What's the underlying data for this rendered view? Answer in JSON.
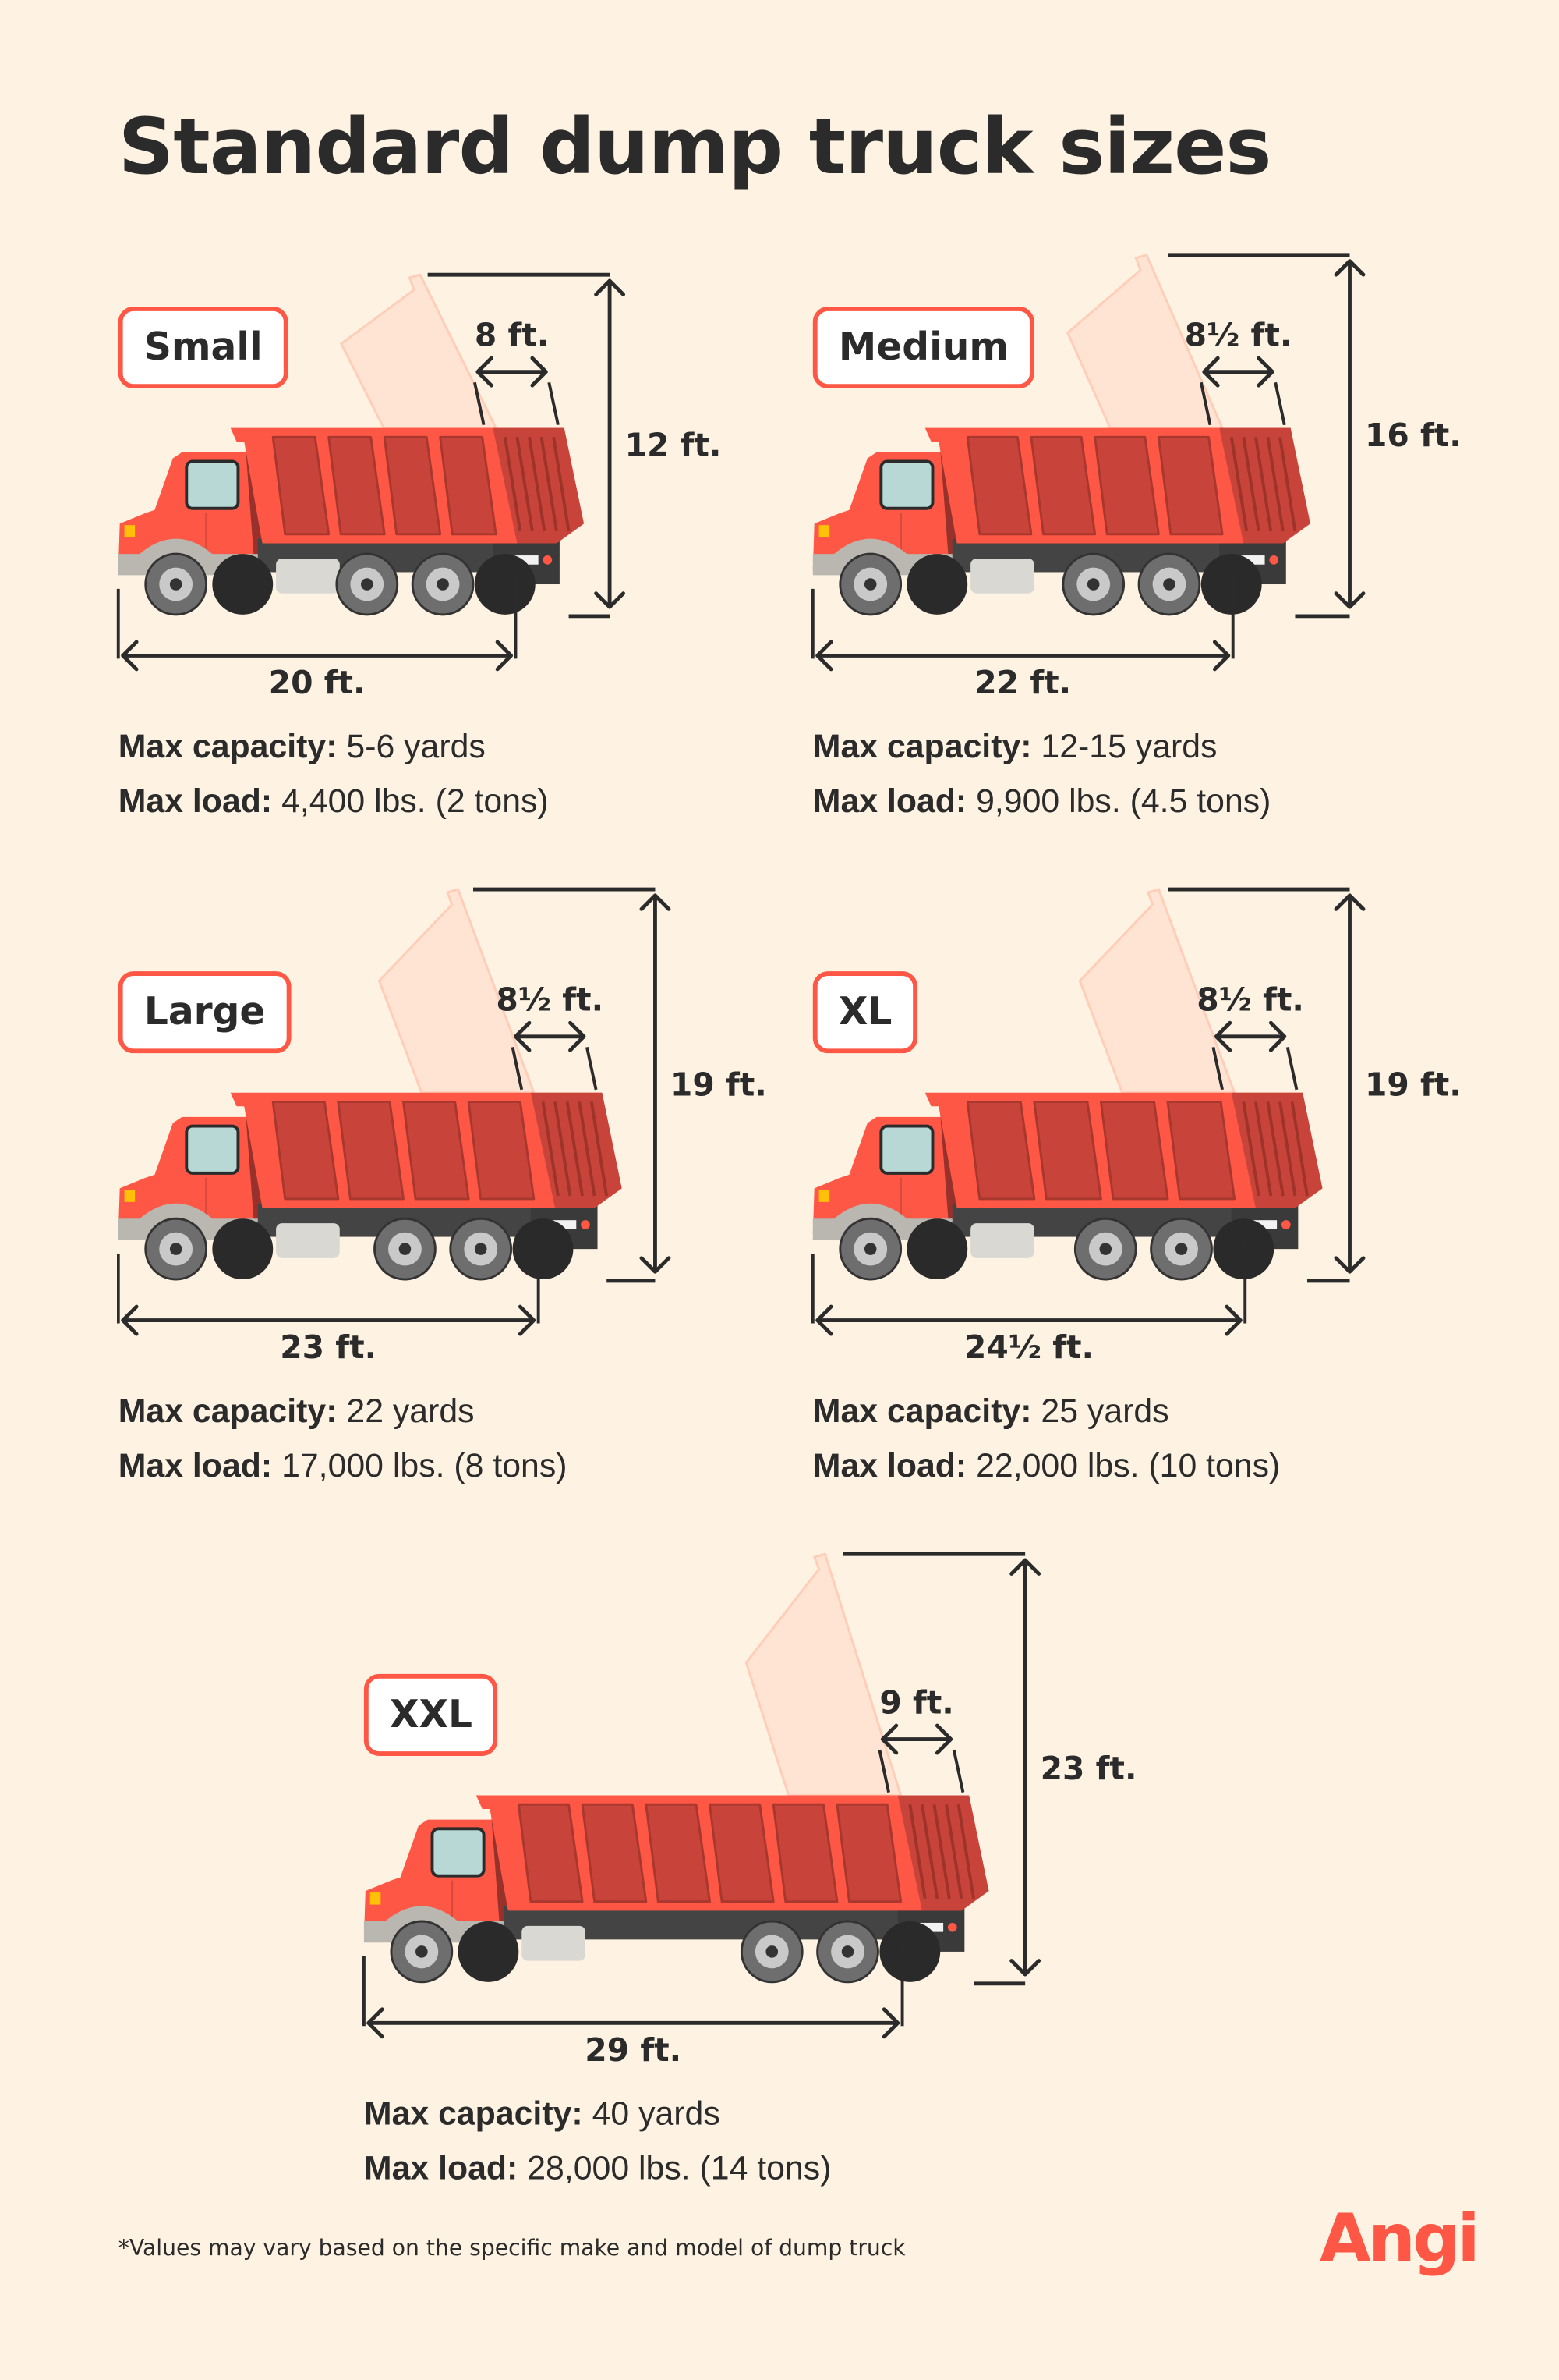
{
  "title": "Standard dump truck sizes",
  "colors": {
    "background": "#FEF3E2",
    "accent": "#FF5745",
    "text": "#2b2b2b"
  },
  "trucks": [
    {
      "size": "Small",
      "length": "20 ft.",
      "height": "12 ft.",
      "bed_width": "8 ft.",
      "capacity_label": "Max capacity:",
      "capacity": "5-6 yards",
      "load_label": "Max load:",
      "load": "4,400 lbs. (2 tons)"
    },
    {
      "size": "Medium",
      "length": "22 ft.",
      "height": "16 ft.",
      "bed_width": "8½ ft.",
      "capacity_label": "Max capacity:",
      "capacity": "12-15 yards",
      "load_label": "Max load:",
      "load": "9,900 lbs. (4.5 tons)"
    },
    {
      "size": "Large",
      "length": "23 ft.",
      "height": "19 ft.",
      "bed_width": "8½ ft.",
      "capacity_label": "Max capacity:",
      "capacity": "22 yards",
      "load_label": "Max load:",
      "load": "17,000 lbs. (8 tons)"
    },
    {
      "size": "XL",
      "length": "24½ ft.",
      "height": "19 ft.",
      "bed_width": "8½ ft.",
      "capacity_label": "Max capacity:",
      "capacity": "25 yards",
      "load_label": "Max load:",
      "load": "22,000 lbs. (10 tons)"
    },
    {
      "size": "XXL",
      "length": "29 ft.",
      "height": "23 ft.",
      "bed_width": "9 ft.",
      "capacity_label": "Max capacity:",
      "capacity": "40 yards",
      "load_label": "Max load:",
      "load": "28,000 lbs. (14 tons)"
    }
  ],
  "footnote": "*Values may vary based on the specific make and model of dump truck",
  "logo": "Angi"
}
